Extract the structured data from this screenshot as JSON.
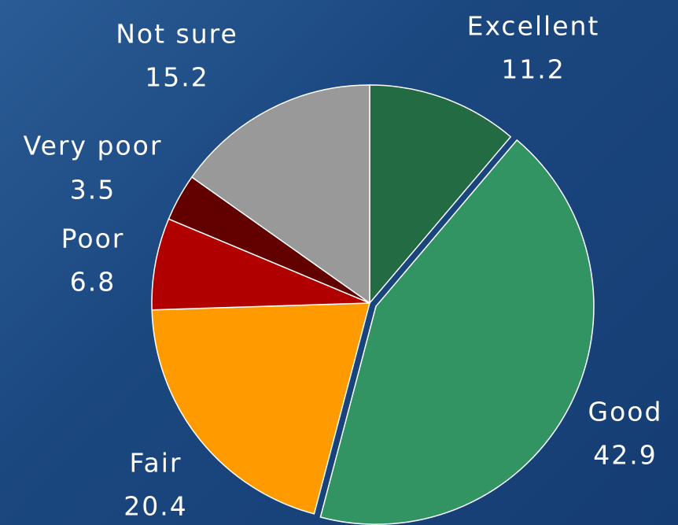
{
  "chart_data": {
    "type": "pie",
    "categories": [
      "Excellent",
      "Good",
      "Fair",
      "Poor",
      "Very poor",
      "Not sure"
    ],
    "values": [
      11.2,
      42.9,
      20.4,
      6.8,
      3.5,
      15.2
    ],
    "colors": [
      "#236b42",
      "#339463",
      "#ff9a00",
      "#b00000",
      "#620000",
      "#999999"
    ]
  }
}
